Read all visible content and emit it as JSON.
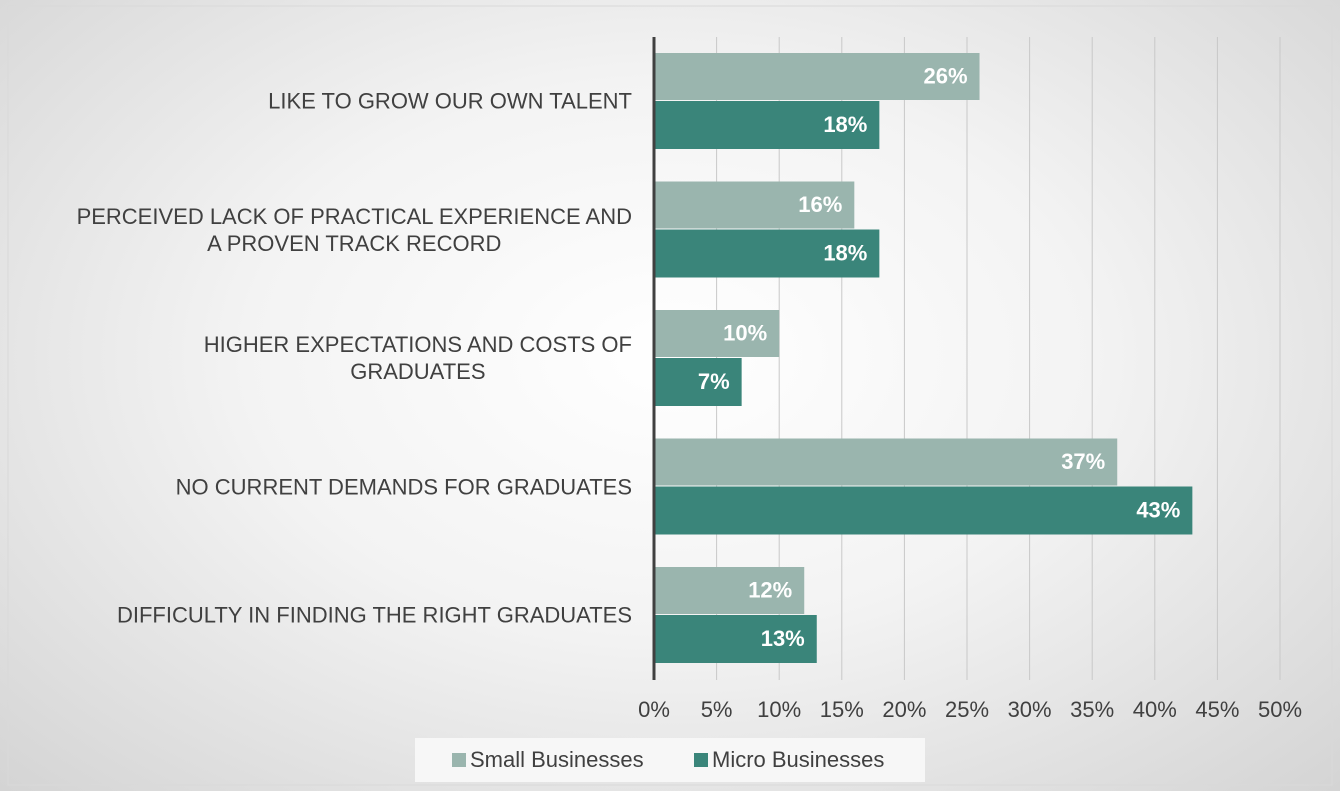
{
  "chart_data": {
    "type": "hbar",
    "categories": [
      "LIKE TO GROW OUR OWN TALENT",
      "PERCEIVED LACK OF PRACTICAL EXPERIENCE AND\nA PROVEN TRACK RECORD",
      "HIGHER EXPECTATIONS AND COSTS OF\nGRADUATES",
      "NO CURRENT DEMANDS FOR GRADUATES",
      "DIFFICULTY IN FINDING THE RIGHT GRADUATES"
    ],
    "series": [
      {
        "name": "Small Businesses",
        "color": "#9ab5ae",
        "values": [
          26,
          16,
          10,
          37,
          12
        ],
        "value_labels": [
          "26%",
          "16%",
          "10%",
          "37%",
          "12%"
        ]
      },
      {
        "name": "Micro Businesses",
        "color": "#3a857a",
        "values": [
          18,
          18,
          7,
          43,
          13
        ],
        "value_labels": [
          "18%",
          "18%",
          "7%",
          "43%",
          "13%"
        ]
      }
    ],
    "xlim": [
      0,
      50
    ],
    "xticks": [
      {
        "value": 0,
        "label": "0%"
      },
      {
        "value": 5,
        "label": "5%"
      },
      {
        "value": 10,
        "label": "10%"
      },
      {
        "value": 15,
        "label": "15%"
      },
      {
        "value": 20,
        "label": "20%"
      },
      {
        "value": 25,
        "label": "25%"
      },
      {
        "value": 30,
        "label": "30%"
      },
      {
        "value": 35,
        "label": "35%"
      },
      {
        "value": 40,
        "label": "40%"
      },
      {
        "value": 45,
        "label": "45%"
      },
      {
        "value": 50,
        "label": "50%"
      }
    ],
    "grid": true,
    "legend": "bottom"
  }
}
